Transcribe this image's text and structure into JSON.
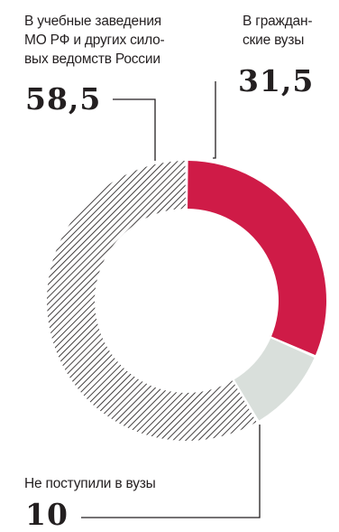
{
  "chart_data": {
    "type": "pie",
    "variant": "donut",
    "unit": "%",
    "slices": [
      {
        "label_lines": [
          "В гражданские вузы"
        ],
        "label_display": [
          "В граждан-",
          "ские вузы"
        ],
        "value": 31.5,
        "value_text": "31,5",
        "color": "#cf1b47",
        "pattern": "solid"
      },
      {
        "label_lines": [
          "Не поступили в вузы"
        ],
        "label_display": [
          "Не поступили в вузы"
        ],
        "value": 10,
        "value_text": "10",
        "color": "#d9dfdb",
        "pattern": "solid"
      },
      {
        "label_lines": [
          "В учебные заведения МО РФ и других силовых ведомств России"
        ],
        "label_display": [
          "В учебные заведения",
          "МО РФ и других сило-",
          "вых ведомств России"
        ],
        "value": 58.5,
        "value_text": "58,5",
        "color": "#231f20",
        "pattern": "hatched"
      }
    ],
    "start": "top",
    "direction": "clockwise",
    "legend": "callout labels with leader lines"
  }
}
